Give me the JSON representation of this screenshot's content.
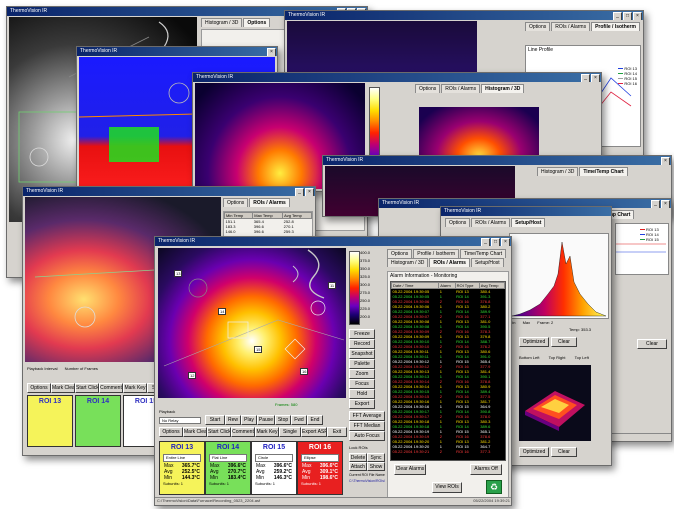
{
  "app": {
    "title": "ThermoVision IR"
  },
  "windows": [
    {
      "title": "ThermoVision IR"
    },
    {
      "title": "ThermoVision IR"
    },
    {
      "title": "ThermoVision IR"
    },
    {
      "title": "ThermoVision IR"
    },
    {
      "title": "ThermoVision IR"
    },
    {
      "title": "ThermoVision IR"
    },
    {
      "title": "ThermoVision IR"
    },
    {
      "title": "ThermoVision IR"
    }
  ],
  "tabs": [
    "Histogram / 3D",
    "Options",
    "ROIs / Alarms",
    "Profile / Isotherm",
    "Time/Temp Chart",
    "Setup/Host"
  ],
  "scale_labels": [
    "400.0",
    "375.0",
    "350.0",
    "325.0",
    "300.0",
    "275.0",
    "250.0",
    "225.0",
    "200.0"
  ],
  "colors": {
    "titlebar": "#0a246a",
    "roi_yellow": "#f5f35a",
    "roi_green": "#78e05a",
    "roi_red": "#e82020",
    "roi_white": "#ffffff"
  },
  "side_buttons": [
    "Freeze",
    "Record",
    "Snapshot",
    "Palette",
    "Zoom",
    "Focus",
    "Hold",
    "Export"
  ],
  "fps_label": "Frames: 580",
  "playback": {
    "label": "Playback",
    "mode": "No Relay",
    "controls": [
      "Start",
      "Rew",
      "Play",
      "Pause",
      "Stop",
      "Fwd",
      "End"
    ],
    "buttons": [
      "Options",
      "Mark Clear",
      "Start Click",
      "Comment",
      "Mark Key",
      "Single",
      "Export ASF",
      "Exit"
    ]
  },
  "main_rois": [
    {
      "name": "ROI 13",
      "color": "#f5f35a",
      "mode": "Entire Line",
      "max": "365.7°C",
      "avg": "252.5°C",
      "min": "144.3°C",
      "footer": "Subunits: 1"
    },
    {
      "name": "ROI 14",
      "color": "#78e05a",
      "mode": "Flat Line",
      "max": "396.6°C",
      "avg": "270.7°C",
      "min": "183.4°C",
      "footer": "Subunits: 1"
    },
    {
      "name": "ROI 15",
      "color": "#ffffff",
      "mode": "Circle",
      "max": "396.6°C",
      "avg": "259.2°C",
      "min": "146.3°C",
      "footer": "Subunits: 1"
    },
    {
      "name": "ROI 16",
      "color": "#e82020",
      "mode": "Ellipse",
      "max": "396.6°C",
      "avg": "309.1°C",
      "min": "198.6°C",
      "footer": "Subunits: 1"
    }
  ],
  "back_rois": [
    {
      "name": "ROI 13",
      "color": "#f5f35a"
    },
    {
      "name": "ROI 14",
      "color": "#78e05a"
    },
    {
      "name": "ROI 15",
      "color": "#ffffff"
    }
  ],
  "stat_labels": {
    "max": "Max",
    "avg": "Avg",
    "min": "Min"
  },
  "log": {
    "title": "Alarm Information - Monitoring",
    "columns": [
      "Date / Time",
      "Alarm",
      "ROI Type",
      "Avg Temp"
    ],
    "rows": [
      {
        "t": "05.22.2004 19:39:05",
        "a": "1",
        "r": "ROI 13",
        "v": "380.4",
        "c": "yel"
      },
      {
        "t": "05.22.2004 19:39:05",
        "a": "1",
        "r": "ROI 14",
        "v": "391.3",
        "c": "grn"
      },
      {
        "t": "05.22.2004 19:39:06",
        "a": "2",
        "r": "ROI 16",
        "v": "376.8",
        "c": "red"
      },
      {
        "t": "05.22.2004 19:39:06",
        "a": "1",
        "r": "ROI 13",
        "v": "380.2",
        "c": "yel"
      },
      {
        "t": "05.22.2004 19:39:07",
        "a": "1",
        "r": "ROI 14",
        "v": "389.9",
        "c": "grn"
      },
      {
        "t": "05.22.2004 19:39:07",
        "a": "2",
        "r": "ROI 16",
        "v": "377.1",
        "c": "red"
      },
      {
        "t": "05.22.2004 19:39:08",
        "a": "1",
        "r": "ROI 13",
        "v": "381.0",
        "c": "yel"
      },
      {
        "t": "05.22.2004 19:39:08",
        "a": "1",
        "r": "ROI 14",
        "v": "390.5",
        "c": "grn"
      },
      {
        "t": "05.22.2004 19:39:09",
        "a": "2",
        "r": "ROI 16",
        "v": "378.3",
        "c": "red"
      },
      {
        "t": "05.22.2004 19:39:09",
        "a": "1",
        "r": "ROI 13",
        "v": "379.8",
        "c": "yel"
      },
      {
        "t": "05.22.2004 19:39:10",
        "a": "1",
        "r": "ROI 14",
        "v": "388.7",
        "c": "grn"
      },
      {
        "t": "05.22.2004 19:39:10",
        "a": "2",
        "r": "ROI 16",
        "v": "376.2",
        "c": "red"
      },
      {
        "t": "05.22.2004 19:39:11",
        "a": "1",
        "r": "ROI 13",
        "v": "380.6",
        "c": "yel"
      },
      {
        "t": "05.22.2004 19:39:11",
        "a": "1",
        "r": "ROI 14",
        "v": "391.0",
        "c": "grn"
      },
      {
        "t": "05.22.2004 19:39:12",
        "a": "1",
        "r": "ROI 15",
        "v": "365.4",
        "c": "wht"
      },
      {
        "t": "05.22.2004 19:39:12",
        "a": "2",
        "r": "ROI 16",
        "v": "377.9",
        "c": "red"
      },
      {
        "t": "05.22.2004 19:39:13",
        "a": "1",
        "r": "ROI 13",
        "v": "381.4",
        "c": "yel"
      },
      {
        "t": "05.22.2004 19:39:13",
        "a": "1",
        "r": "ROI 14",
        "v": "390.1",
        "c": "grn"
      },
      {
        "t": "05.22.2004 19:39:14",
        "a": "2",
        "r": "ROI 16",
        "v": "378.8",
        "c": "red"
      },
      {
        "t": "05.22.2004 19:39:14",
        "a": "1",
        "r": "ROI 13",
        "v": "380.9",
        "c": "yel"
      },
      {
        "t": "05.22.2004 19:39:15",
        "a": "1",
        "r": "ROI 14",
        "v": "389.4",
        "c": "grn"
      },
      {
        "t": "05.22.2004 19:39:15",
        "a": "2",
        "r": "ROI 16",
        "v": "377.5",
        "c": "red"
      },
      {
        "t": "05.22.2004 19:39:16",
        "a": "1",
        "r": "ROI 13",
        "v": "381.7",
        "c": "yel"
      },
      {
        "t": "05.22.2004 19:39:16",
        "a": "1",
        "r": "ROI 15",
        "v": "364.9",
        "c": "wht"
      },
      {
        "t": "05.22.2004 19:39:17",
        "a": "1",
        "r": "ROI 14",
        "v": "390.8",
        "c": "grn"
      },
      {
        "t": "05.22.2004 19:39:17",
        "a": "2",
        "r": "ROI 16",
        "v": "378.0",
        "c": "red"
      },
      {
        "t": "05.22.2004 19:39:18",
        "a": "1",
        "r": "ROI 13",
        "v": "380.3",
        "c": "yel"
      },
      {
        "t": "05.22.2004 19:39:18",
        "a": "1",
        "r": "ROI 14",
        "v": "389.6",
        "c": "grn"
      },
      {
        "t": "05.22.2004 19:39:19",
        "a": "1",
        "r": "ROI 15",
        "v": "365.1",
        "c": "wht"
      },
      {
        "t": "05.22.2004 19:39:19",
        "a": "2",
        "r": "ROI 16",
        "v": "378.6",
        "c": "red"
      },
      {
        "t": "05.22.2004 19:39:20",
        "a": "1",
        "r": "ROI 13",
        "v": "381.2",
        "c": "yel"
      },
      {
        "t": "05.22.2004 19:39:20",
        "a": "1",
        "r": "ROI 15",
        "v": "364.7",
        "c": "wht"
      },
      {
        "t": "05.22.2004 19:39:21",
        "a": "2",
        "r": "ROI 16",
        "v": "377.3",
        "c": "red"
      }
    ],
    "buttons": {
      "clear": "Clear Alarms",
      "alarm_off": "Alarms Off",
      "view": "View ROIs"
    }
  },
  "right_panel": {
    "labels": [
      "Lock ROIs",
      "Delete",
      "Sync",
      "Attach",
      "Show",
      "Current ROI File Name"
    ],
    "file": "C:\\ThermoVision\\ROIs\\Furnace.roi",
    "buttons": [
      "FFT Average",
      "FFT Median",
      "Auto Focus"
    ],
    "options": [
      "Bottom Left",
      "Top Right",
      "Top Left"
    ]
  },
  "hist_panel": {
    "labels": [
      "Min",
      "Max",
      "Bins: 1",
      "Frame: 2",
      "Temp: 353.3"
    ],
    "buttons": [
      "Optimized",
      "Clear"
    ]
  },
  "line_chart": {
    "title": "Line Profile",
    "legend": [
      "ROI 13",
      "ROI 14",
      "ROI 15",
      "ROI 16"
    ]
  },
  "time_chart": {
    "legend": [
      "ROI 13",
      "ROI 14",
      "ROI 15"
    ]
  },
  "back_table": {
    "columns": [
      "Min Temp",
      "Max Temp",
      "Avg Temp"
    ],
    "rows": [
      [
        "151.1",
        "365.4",
        "252.8"
      ],
      [
        "183.3",
        "396.6",
        "270.1"
      ],
      [
        "146.0",
        "396.6",
        "259.3"
      ]
    ]
  },
  "back_controls": {
    "playback": "Playback Interval",
    "frames": "Number of Frames",
    "buttons": [
      "Options",
      "Mark Clear",
      "Start Click",
      "Comment",
      "Mark Key",
      "Single"
    ]
  },
  "status_text": "C:\\ThermoVision\\Data\\Furnace\\Recording_0523_2204.asf",
  "status_time": "05/22/2004 19:39:21"
}
